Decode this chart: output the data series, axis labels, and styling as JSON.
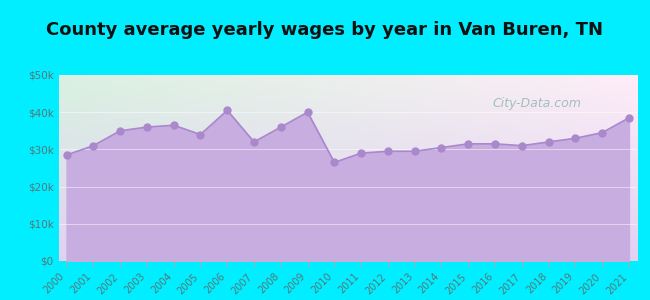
{
  "title": "County average yearly wages by year in Van Buren, TN",
  "years": [
    2000,
    2001,
    2002,
    2003,
    2004,
    2005,
    2006,
    2007,
    2008,
    2009,
    2010,
    2011,
    2012,
    2013,
    2014,
    2015,
    2016,
    2017,
    2018,
    2019,
    2020,
    2021
  ],
  "values": [
    28500,
    31000,
    35000,
    36000,
    36500,
    34000,
    40500,
    32000,
    36000,
    40000,
    26500,
    29000,
    29500,
    29500,
    30500,
    31500,
    31500,
    31000,
    32000,
    33000,
    34500,
    38500
  ],
  "line_color": "#aa88cc",
  "fill_color": "#c8aee0",
  "fill_alpha": 1.0,
  "marker_color": "#aa88cc",
  "marker_size": 5,
  "bg_outer": "#00eeff",
  "bg_plot_top_left": "#d8f0e8",
  "bg_plot_top_right": "#f0f8f8",
  "bg_plot_bottom": "#d8c8ee",
  "title_fontsize": 13,
  "title_color": "#111111",
  "tick_label_color": "#557777",
  "watermark_text": "City-Data.com",
  "watermark_color": "#99bbbb",
  "ylim": [
    0,
    50000
  ],
  "yticks": [
    0,
    10000,
    20000,
    30000,
    40000,
    50000
  ],
  "ytick_labels": [
    "$0",
    "$10k",
    "$20k",
    "$30k",
    "$40k",
    "$50k"
  ]
}
